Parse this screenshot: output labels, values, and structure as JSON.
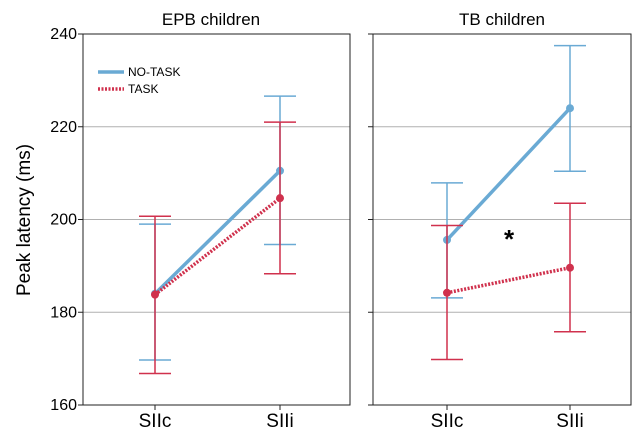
{
  "chart_data": {
    "type": "line",
    "ylabel": "Peak latency (ms)",
    "ylim": [
      160,
      240
    ],
    "yticks": [
      160,
      180,
      200,
      220,
      240
    ],
    "categories": [
      "SIIc",
      "SIIi"
    ],
    "grid": true,
    "legend": {
      "placement": "top-left",
      "entries": [
        {
          "label": "NO-TASK",
          "color": "#6aaad4",
          "style": "solid"
        },
        {
          "label": "TASK",
          "color": "#d0314d",
          "style": "dotted"
        }
      ]
    },
    "panels": [
      {
        "title": "EPB children",
        "series": [
          {
            "name": "NO-TASK",
            "values": [
              184,
              210.5
            ],
            "error_low": [
              169.7,
              194.6
            ],
            "error_high": [
              199,
              226.6
            ]
          },
          {
            "name": "TASK",
            "values": [
              183.8,
              204.6
            ],
            "error_low": [
              166.8,
              188.3
            ],
            "error_high": [
              200.7,
              221
            ]
          }
        ],
        "annotation": ""
      },
      {
        "title": "TB children",
        "series": [
          {
            "name": "NO-TASK",
            "values": [
              195.6,
              224
            ],
            "error_low": [
              183.1,
              210.4
            ],
            "error_high": [
              207.9,
              237.5
            ]
          },
          {
            "name": "TASK",
            "values": [
              184.2,
              189.6
            ],
            "error_low": [
              169.8,
              175.8
            ],
            "error_high": [
              198.7,
              203.5
            ]
          }
        ],
        "annotation": "*"
      }
    ]
  }
}
